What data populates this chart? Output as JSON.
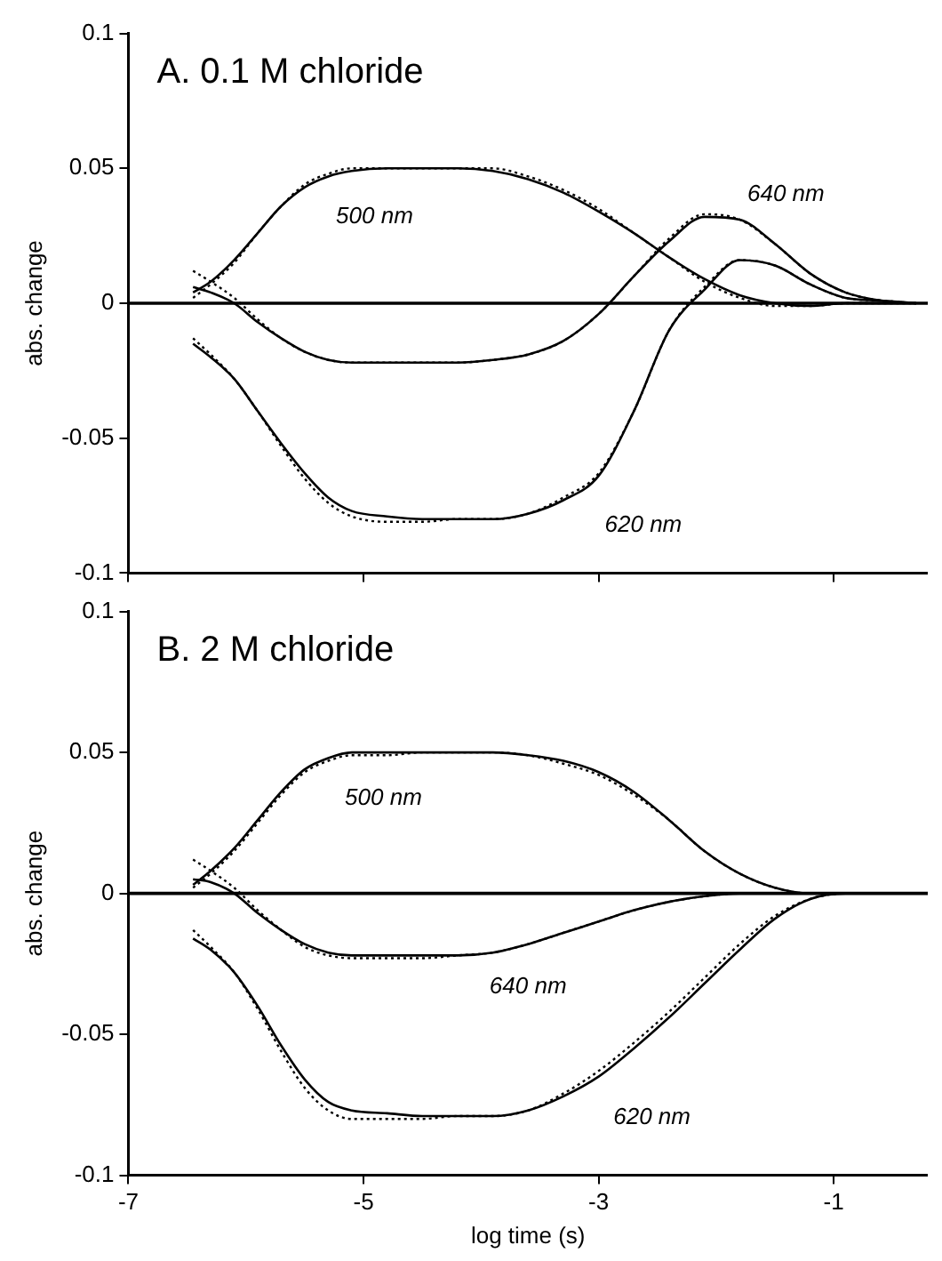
{
  "chart_data": [
    {
      "type": "line",
      "title": "A. 0.1 M chloride",
      "ylabel": "abs. change",
      "xlim": [
        -7,
        -0.2
      ],
      "xticks": [
        -7,
        -5,
        -3,
        -1
      ],
      "ylim": [
        -0.1,
        0.1
      ],
      "yticks": [
        -0.1,
        -0.05,
        0,
        0.05,
        0.1
      ],
      "grid": false,
      "legend": false,
      "marker": "none",
      "tick_labels": "y",
      "x": [
        -6.45,
        -6.3,
        -6.1,
        -5.9,
        -5.7,
        -5.5,
        -5.3,
        -5.1,
        -4.8,
        -4.5,
        -4.2,
        -3.9,
        -3.6,
        -3.3,
        -3.0,
        -2.7,
        -2.4,
        -2.1,
        -1.8,
        -1.5,
        -1.2,
        -0.9,
        -0.6,
        -0.3
      ],
      "series": [
        {
          "name": "500 nm",
          "color": "#000000",
          "line_style": "solid",
          "values": [
            0.004,
            0.008,
            0.016,
            0.026,
            0.036,
            0.043,
            0.047,
            0.049,
            0.05,
            0.05,
            0.05,
            0.049,
            0.046,
            0.041,
            0.034,
            0.026,
            0.017,
            0.009,
            0.003,
            0.0,
            -0.001,
            0,
            0,
            0
          ]
        },
        {
          "color": "#000000",
          "line_style": "dotted",
          "values": [
            0.002,
            0.007,
            0.015,
            0.026,
            0.036,
            0.044,
            0.048,
            0.05,
            0.05,
            0.05,
            0.05,
            0.05,
            0.047,
            0.042,
            0.035,
            0.026,
            0.017,
            0.008,
            0.002,
            -0.001,
            -0.001,
            0,
            0,
            0
          ]
        },
        {
          "name": "640 nm",
          "color": "#000000",
          "line_style": "solid",
          "values": [
            0.006,
            0.004,
            0.0,
            -0.007,
            -0.013,
            -0.018,
            -0.021,
            -0.022,
            -0.022,
            -0.022,
            -0.022,
            -0.021,
            -0.019,
            -0.014,
            -0.004,
            0.01,
            0.023,
            0.032,
            0.031,
            0.022,
            0.011,
            0.004,
            0.001,
            0
          ]
        },
        {
          "color": "#000000",
          "line_style": "dotted",
          "values": [
            0.012,
            0.008,
            0.002,
            -0.006,
            -0.013,
            -0.018,
            -0.021,
            -0.022,
            -0.022,
            -0.022,
            -0.022,
            -0.021,
            -0.019,
            -0.014,
            -0.004,
            0.01,
            0.024,
            0.033,
            0.031,
            0.022,
            0.011,
            0.004,
            0.001,
            0
          ]
        },
        {
          "name": "620 nm",
          "color": "#000000",
          "line_style": "solid",
          "values": [
            -0.015,
            -0.02,
            -0.028,
            -0.04,
            -0.052,
            -0.063,
            -0.072,
            -0.077,
            -0.079,
            -0.08,
            -0.08,
            -0.08,
            -0.078,
            -0.073,
            -0.064,
            -0.04,
            -0.01,
            0.005,
            0.016,
            0.014,
            0.007,
            0.002,
            0.001,
            0
          ]
        },
        {
          "color": "#000000",
          "line_style": "dotted",
          "values": [
            -0.013,
            -0.019,
            -0.028,
            -0.04,
            -0.053,
            -0.065,
            -0.074,
            -0.079,
            -0.081,
            -0.081,
            -0.08,
            -0.08,
            -0.078,
            -0.072,
            -0.063,
            -0.04,
            -0.01,
            0.006,
            0.016,
            0.014,
            0.007,
            0.002,
            0.001,
            0
          ]
        }
      ],
      "ref_lines": [
        {
          "axis": "y",
          "value": 0,
          "color": "#000000"
        }
      ]
    },
    {
      "type": "line",
      "title": "B. 2 M chloride",
      "xlabel": "log time (s)",
      "ylabel": "abs. change",
      "xlim": [
        -7,
        -0.2
      ],
      "xticks": [
        -7,
        -5,
        -3,
        -1
      ],
      "ylim": [
        -0.1,
        0.1
      ],
      "yticks": [
        -0.1,
        -0.05,
        0,
        0.05,
        0.1
      ],
      "grid": false,
      "legend": false,
      "marker": "none",
      "x": [
        -6.45,
        -6.3,
        -6.1,
        -5.9,
        -5.7,
        -5.5,
        -5.3,
        -5.1,
        -4.8,
        -4.5,
        -4.2,
        -3.9,
        -3.6,
        -3.3,
        -3.0,
        -2.7,
        -2.4,
        -2.1,
        -1.8,
        -1.5,
        -1.2,
        -0.9,
        -0.6,
        -0.3
      ],
      "series": [
        {
          "name": "500 nm",
          "color": "#000000",
          "line_style": "solid",
          "values": [
            0.003,
            0.008,
            0.016,
            0.026,
            0.036,
            0.044,
            0.048,
            0.05,
            0.05,
            0.05,
            0.05,
            0.05,
            0.049,
            0.047,
            0.043,
            0.036,
            0.026,
            0.015,
            0.007,
            0.002,
            0.0,
            0,
            0,
            0
          ]
        },
        {
          "color": "#000000",
          "line_style": "dotted",
          "values": [
            0.002,
            0.007,
            0.015,
            0.025,
            0.035,
            0.043,
            0.047,
            0.049,
            0.049,
            0.05,
            0.05,
            0.05,
            0.049,
            0.046,
            0.042,
            0.035,
            0.026,
            0.015,
            0.007,
            0.002,
            0.0,
            0,
            0,
            0
          ]
        },
        {
          "name": "640 nm",
          "color": "#000000",
          "line_style": "solid",
          "values": [
            0.005,
            0.004,
            0.0,
            -0.007,
            -0.013,
            -0.018,
            -0.021,
            -0.022,
            -0.022,
            -0.022,
            -0.022,
            -0.021,
            -0.018,
            -0.014,
            -0.01,
            -0.006,
            -0.003,
            -0.001,
            0,
            0,
            0,
            0,
            0,
            0
          ]
        },
        {
          "color": "#000000",
          "line_style": "dotted",
          "values": [
            0.012,
            0.008,
            0.002,
            -0.006,
            -0.013,
            -0.019,
            -0.022,
            -0.023,
            -0.023,
            -0.023,
            -0.022,
            -0.021,
            -0.018,
            -0.014,
            -0.01,
            -0.006,
            -0.003,
            -0.001,
            0,
            0,
            0,
            0,
            0,
            0
          ]
        },
        {
          "name": "620 nm",
          "color": "#000000",
          "line_style": "solid",
          "values": [
            -0.016,
            -0.02,
            -0.028,
            -0.04,
            -0.054,
            -0.066,
            -0.074,
            -0.077,
            -0.078,
            -0.079,
            -0.079,
            -0.079,
            -0.077,
            -0.072,
            -0.065,
            -0.055,
            -0.044,
            -0.032,
            -0.02,
            -0.009,
            -0.002,
            0,
            0,
            0
          ]
        },
        {
          "color": "#000000",
          "line_style": "dotted",
          "values": [
            -0.013,
            -0.019,
            -0.028,
            -0.041,
            -0.056,
            -0.069,
            -0.077,
            -0.08,
            -0.08,
            -0.08,
            -0.079,
            -0.079,
            -0.077,
            -0.071,
            -0.063,
            -0.053,
            -0.042,
            -0.03,
            -0.018,
            -0.008,
            -0.002,
            0,
            0,
            0
          ]
        }
      ],
      "ref_lines": [
        {
          "axis": "y",
          "value": 0,
          "color": "#000000"
        }
      ]
    }
  ]
}
